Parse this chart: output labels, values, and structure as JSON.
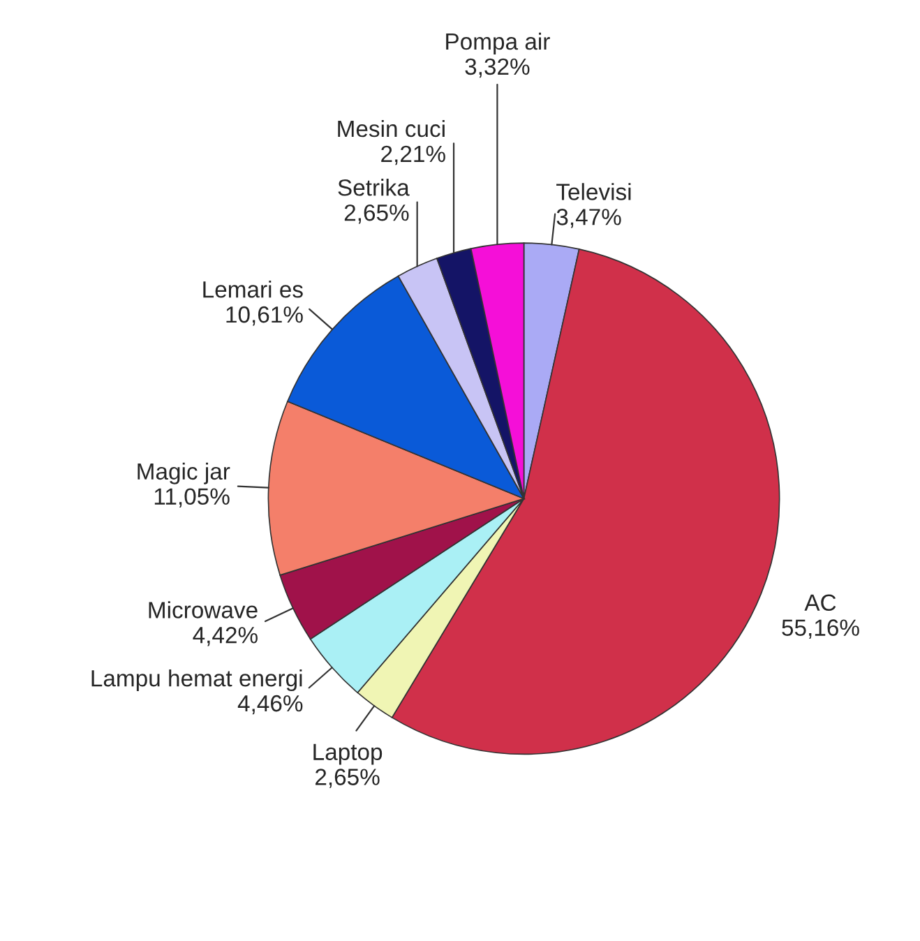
{
  "chart_data": {
    "type": "pie",
    "categories": [
      "Televisi",
      "AC",
      "Laptop",
      "Lampu hemat energi",
      "Microwave",
      "Magic jar",
      "Lemari es",
      "Setrika",
      "Mesin cuci",
      "Pompa air"
    ],
    "values": [
      3.47,
      55.16,
      2.65,
      4.46,
      4.42,
      11.05,
      10.61,
      2.65,
      2.21,
      3.32
    ],
    "value_labels": [
      "3,47%",
      "55,16%",
      "2,65%",
      "4,46%",
      "4,42%",
      "11,05%",
      "10,61%",
      "2,65%",
      "2,21%",
      "3,32%"
    ],
    "colors": [
      "#aaaaf5",
      "#d0304a",
      "#f0f5b4",
      "#aaf0f5",
      "#a0124a",
      "#f47f6a",
      "#0a5ad8",
      "#c8c4f5",
      "#141466",
      "#f50fd8"
    ],
    "legend": false
  }
}
